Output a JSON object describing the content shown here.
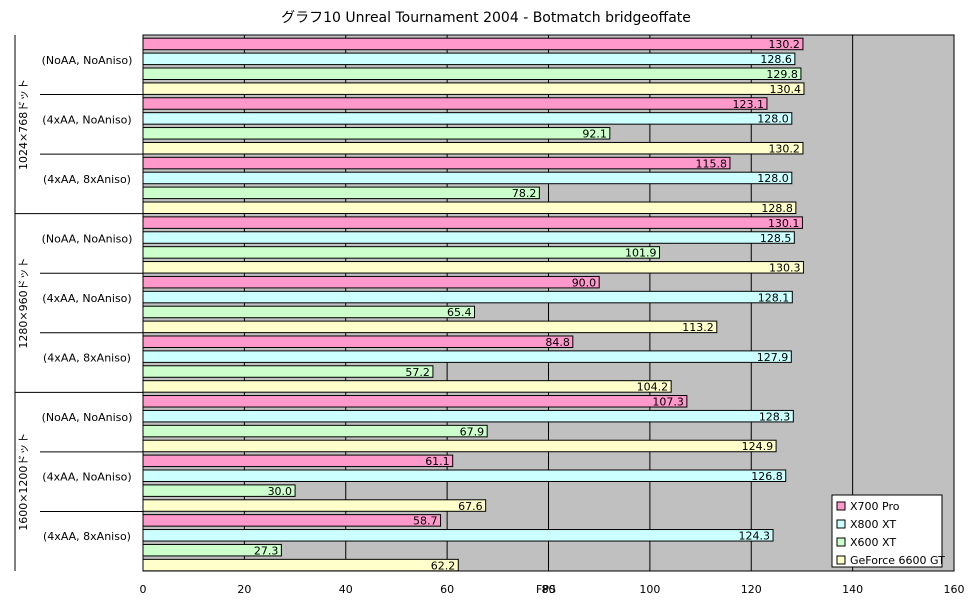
{
  "chart_data": {
    "type": "bar",
    "orientation": "horizontal",
    "title": "グラフ10  Unreal Tournament 2004 - Botmatch bridgeoffate",
    "xlabel": "FPS",
    "ylabel": "",
    "xlim": [
      0,
      160
    ],
    "xticks": [
      "0",
      "20",
      "40",
      "60",
      "80",
      "100",
      "120",
      "140",
      "160"
    ],
    "grid": true,
    "legend_position": "bottom-right",
    "groups": [
      {
        "label": "1024×768ドット",
        "categories": [
          "(NoAA, NoAniso)",
          "(4xAA, NoAniso)",
          "(4xAA, 8xAniso)"
        ]
      },
      {
        "label": "1280×960ドット",
        "categories": [
          "(NoAA, NoAniso)",
          "(4xAA, NoAniso)",
          "(4xAA, 8xAniso)"
        ]
      },
      {
        "label": "1600×1200ドット",
        "categories": [
          "(NoAA, NoAniso)",
          "(4xAA, NoAniso)",
          "(4xAA, 8xAniso)"
        ]
      }
    ],
    "series": [
      {
        "name": "X700 Pro",
        "color": "#ff99cc",
        "values": [
          130.2,
          123.1,
          115.8,
          130.1,
          90.0,
          84.8,
          107.3,
          61.1,
          58.7
        ],
        "labels": [
          "130.2",
          "123.1",
          "115.8",
          "130.1",
          "90.0",
          "84.8",
          "107.3",
          "61.1",
          "58.7"
        ]
      },
      {
        "name": "X800 XT",
        "color": "#ccffff",
        "values": [
          128.6,
          128.0,
          128.0,
          128.5,
          128.1,
          127.9,
          128.3,
          126.8,
          124.3
        ],
        "labels": [
          "128.6",
          "128.0",
          "128.0",
          "128.5",
          "128.1",
          "127.9",
          "128.3",
          "126.8",
          "124.3"
        ]
      },
      {
        "name": "X600 XT",
        "color": "#ccffcc",
        "values": [
          129.8,
          92.1,
          78.2,
          101.9,
          65.4,
          57.2,
          67.9,
          30.0,
          27.3
        ],
        "labels": [
          "129.8",
          "92.1",
          "78.2",
          "101.9",
          "65.4",
          "57.2",
          "67.9",
          "30.0",
          "27.3"
        ]
      },
      {
        "name": "GeForce 6600 GT",
        "color": "#ffffcc",
        "values": [
          130.4,
          130.2,
          128.8,
          130.3,
          113.2,
          104.2,
          124.9,
          67.6,
          62.2
        ],
        "labels": [
          "130.4",
          "130.2",
          "128.8",
          "130.3",
          "113.2",
          "104.2",
          "124.9",
          "67.6",
          "62.2"
        ]
      }
    ],
    "colors": {
      "plot_background": "#c0c0c0",
      "gridline": "#000000",
      "bar_border": "#000000"
    }
  }
}
